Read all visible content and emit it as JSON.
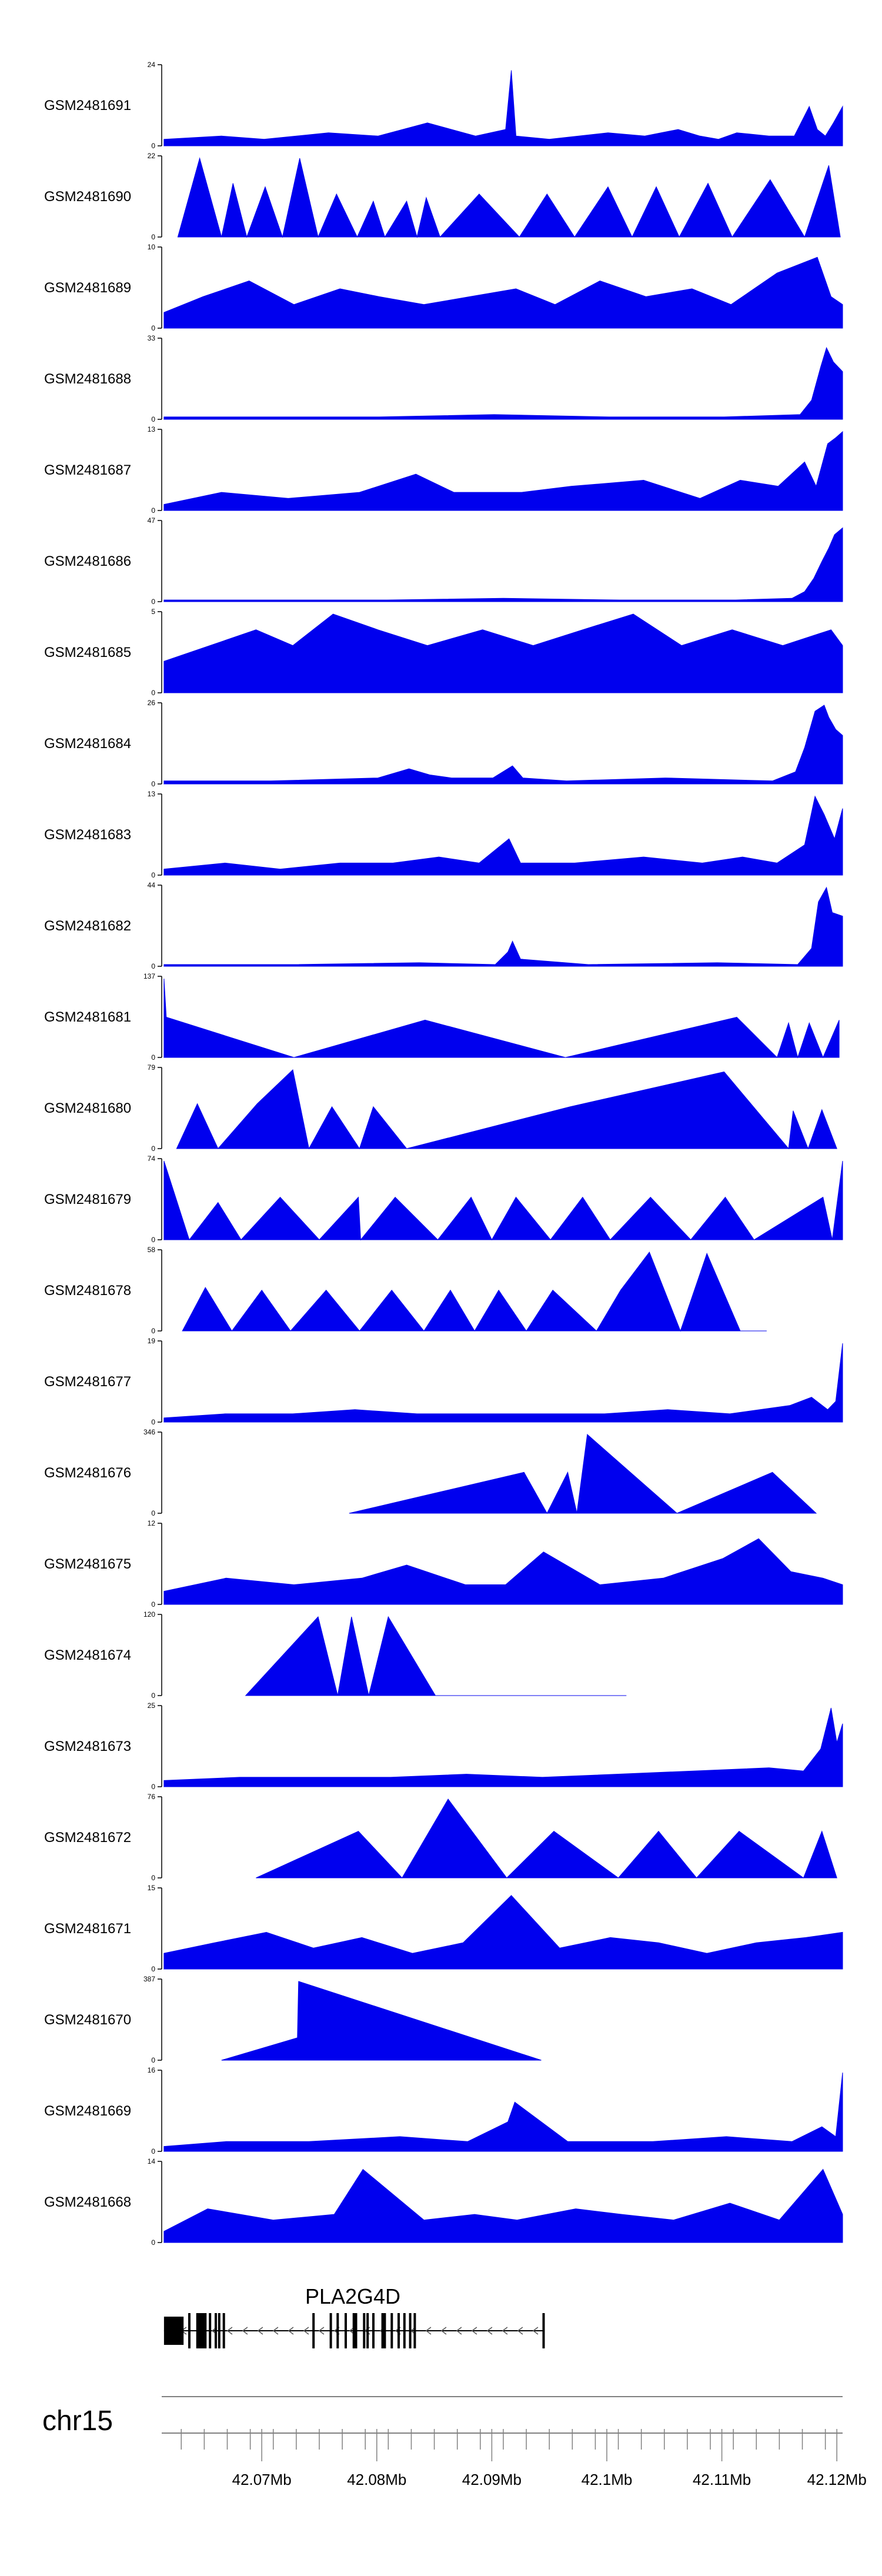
{
  "colors": {
    "track": "#0000ee",
    "axis": "#000000",
    "gene": "#000000",
    "ruler": "#808080"
  },
  "chart_data": {
    "type": "area",
    "title": "",
    "xlabel": "",
    "ylabel": "",
    "chromosome": "chr15",
    "genome_range_mb": [
      42.0613,
      42.1205
    ],
    "genome_ticks_mb": [
      42.07,
      42.08,
      42.09,
      42.1,
      42.11,
      42.12
    ],
    "genome_tick_labels": [
      "42.07Mb",
      "42.08Mb",
      "42.09Mb",
      "42.1Mb",
      "42.11Mb",
      "42.12Mb"
    ],
    "gene": {
      "name": "PLA2G4D",
      "strand": "-",
      "start_mb": 42.0615,
      "end_mb": 42.0945,
      "exons_mb": [
        [
          42.0615,
          42.0632
        ],
        [
          42.0636,
          42.0637
        ],
        [
          42.0643,
          42.0652
        ],
        [
          42.0654,
          42.0656
        ],
        [
          42.0659,
          42.066
        ],
        [
          42.0662,
          42.0663
        ],
        [
          42.0666,
          42.0667
        ],
        [
          42.0744,
          42.0746
        ],
        [
          42.0759,
          42.0761
        ],
        [
          42.0765,
          42.0767
        ],
        [
          42.0772,
          42.0774
        ],
        [
          42.0779,
          42.0783
        ],
        [
          42.0788,
          42.079
        ],
        [
          42.0791,
          42.0792
        ],
        [
          42.0796,
          42.0797
        ],
        [
          42.0804,
          42.0808
        ],
        [
          42.0812,
          42.0814
        ],
        [
          42.0818,
          42.0819
        ],
        [
          42.0823,
          42.0825
        ],
        [
          42.0828,
          42.0829
        ],
        [
          42.0832,
          42.0833
        ],
        [
          42.0944,
          42.0945
        ]
      ]
    },
    "series": [
      {
        "name": "GSM2481691",
        "ymax": 24,
        "ylim_labels": [
          "24",
          "0"
        ],
        "x": [
          42.0615,
          42.0665,
          42.0702,
          42.0758,
          42.0801,
          42.0844,
          42.0886,
          42.0912,
          42.0917,
          42.0921,
          42.095,
          42.1001,
          42.1033,
          42.1062,
          42.1081,
          42.1097,
          42.1113,
          42.1141,
          42.1163,
          42.1176,
          42.1183,
          42.119,
          42.1197,
          42.1205
        ],
        "values": [
          2,
          3,
          2,
          4,
          3,
          7,
          3,
          5,
          23,
          3,
          2,
          4,
          3,
          5,
          3,
          2,
          4,
          3,
          3,
          12,
          5,
          3,
          7,
          12
        ]
      },
      {
        "name": "GSM2481690",
        "ymax": 22,
        "ylim_labels": [
          "22",
          "0"
        ],
        "x": [
          42.0627,
          42.0646,
          42.0665,
          42.0675,
          42.0687,
          42.0703,
          42.0718,
          42.0733,
          42.0749,
          42.0765,
          42.0783,
          42.0797,
          42.0807,
          42.0826,
          42.0835,
          42.0843,
          42.0855,
          42.0889,
          42.0924,
          42.0948,
          42.0972,
          42.1001,
          42.1022,
          42.1043,
          42.1063,
          42.1088,
          42.1109,
          42.1142,
          42.1172,
          42.1193,
          42.1203
        ],
        "values": [
          0,
          22,
          0,
          15,
          0,
          14,
          0,
          22,
          0,
          12,
          0,
          10,
          0,
          10,
          0,
          11,
          0,
          12,
          0,
          12,
          0,
          14,
          0,
          14,
          0,
          15,
          0,
          16,
          0,
          20,
          0
        ]
      },
      {
        "name": "GSM2481689",
        "ymax": 10,
        "ylim_labels": [
          "10",
          "0"
        ],
        "x": [
          42.0615,
          42.0649,
          42.0689,
          42.0728,
          42.0768,
          42.0802,
          42.0841,
          42.0881,
          42.0921,
          42.0955,
          42.0994,
          42.1034,
          42.1074,
          42.1108,
          42.1148,
          42.1183,
          42.1195,
          42.1205
        ],
        "values": [
          2,
          4,
          6,
          3,
          5,
          4,
          3,
          4,
          5,
          3,
          6,
          4,
          5,
          3,
          7,
          9,
          4,
          3
        ]
      },
      {
        "name": "GSM2481688",
        "ymax": 33,
        "ylim_labels": [
          "33",
          "0"
        ],
        "x": [
          42.0615,
          42.0701,
          42.0802,
          42.0902,
          42.1002,
          42.1102,
          42.1168,
          42.1178,
          42.1186,
          42.1191,
          42.1197,
          42.1205
        ],
        "values": [
          1,
          1,
          1,
          2,
          1,
          1,
          2,
          8,
          22,
          30,
          24,
          20
        ]
      },
      {
        "name": "GSM2481687",
        "ymax": 13,
        "ylim_labels": [
          "13",
          "0"
        ],
        "x": [
          42.0615,
          42.0665,
          42.0723,
          42.0785,
          42.0834,
          42.0867,
          42.0926,
          42.0969,
          42.1032,
          42.1081,
          42.1116,
          42.1149,
          42.1172,
          42.1182,
          42.1192,
          42.1199,
          42.1205
        ],
        "values": [
          1,
          3,
          2,
          3,
          6,
          3,
          3,
          4,
          5,
          2,
          5,
          4,
          8,
          4,
          11,
          12,
          13
        ]
      },
      {
        "name": "GSM2481686",
        "ymax": 47,
        "ylim_labels": [
          "47",
          "0"
        ],
        "x": [
          42.0615,
          42.0708,
          42.0809,
          42.091,
          42.1011,
          42.1112,
          42.1161,
          42.1172,
          42.118,
          42.1187,
          42.1193,
          42.1198,
          42.1205
        ],
        "values": [
          1,
          1,
          1,
          2,
          1,
          1,
          2,
          6,
          14,
          24,
          32,
          40,
          44
        ]
      },
      {
        "name": "GSM2481685",
        "ymax": 5,
        "ylim_labels": [
          "5",
          "0"
        ],
        "x": [
          42.0615,
          42.0655,
          42.0695,
          42.0727,
          42.0762,
          42.0801,
          42.0844,
          42.0892,
          42.0936,
          42.0979,
          42.1023,
          42.1065,
          42.1109,
          42.1153,
          42.1195,
          42.1205
        ],
        "values": [
          2,
          3,
          4,
          3,
          5,
          4,
          3,
          4,
          3,
          4,
          5,
          3,
          4,
          3,
          4,
          3
        ]
      },
      {
        "name": "GSM2481684",
        "ymax": 26,
        "ylim_labels": [
          "26",
          "0"
        ],
        "x": [
          42.0615,
          42.0708,
          42.0801,
          42.0828,
          42.0846,
          42.0865,
          42.0901,
          42.0918,
          42.0927,
          42.0965,
          42.1051,
          42.1144,
          42.1164,
          42.1172,
          42.1181,
          42.1189,
          42.1193,
          42.1199,
          42.1205
        ],
        "values": [
          1,
          1,
          2,
          5,
          3,
          2,
          2,
          6,
          2,
          1,
          2,
          1,
          4,
          12,
          24,
          26,
          22,
          18,
          16
        ]
      },
      {
        "name": "GSM2481683",
        "ymax": 13,
        "ylim_labels": [
          "13",
          "0"
        ],
        "x": [
          42.0615,
          42.0668,
          42.0716,
          42.0768,
          42.0814,
          42.0854,
          42.0889,
          42.0915,
          42.0925,
          42.0972,
          42.1032,
          42.1083,
          42.1118,
          42.1148,
          42.1172,
          42.1181,
          42.1189,
          42.1198,
          42.1205
        ],
        "values": [
          1,
          2,
          1,
          2,
          2,
          3,
          2,
          6,
          2,
          2,
          3,
          2,
          3,
          2,
          5,
          13,
          10,
          6,
          11
        ]
      },
      {
        "name": "GSM2481682",
        "ymax": 44,
        "ylim_labels": [
          "44",
          "0"
        ],
        "x": [
          42.0615,
          42.0726,
          42.0837,
          42.0903,
          42.0914,
          42.0918,
          42.0925,
          42.0984,
          42.1096,
          42.1166,
          42.1178,
          42.1184,
          42.1191,
          42.1196,
          42.1205
        ],
        "values": [
          1,
          1,
          2,
          1,
          8,
          14,
          4,
          1,
          2,
          1,
          10,
          36,
          44,
          30,
          28
        ]
      },
      {
        "name": "GSM2481681",
        "ymax": 137,
        "ylim_labels": [
          "137",
          "0"
        ],
        "x": [
          42.0615,
          42.0617,
          42.0728,
          42.0842,
          42.0964,
          42.1113,
          42.1148,
          42.1158,
          42.1166,
          42.1176,
          42.1188,
          42.1202
        ],
        "values": [
          137,
          70,
          0,
          65,
          0,
          70,
          0,
          60,
          0,
          60,
          0,
          65
        ]
      },
      {
        "name": "GSM2481680",
        "ymax": 79,
        "ylim_labels": [
          "79",
          "0"
        ],
        "x": [
          42.0626,
          42.0644,
          42.0662,
          42.0696,
          42.0727,
          42.0741,
          42.0761,
          42.0785,
          42.0797,
          42.0826,
          42.0968,
          42.1102,
          42.1158,
          42.1162,
          42.1175,
          42.1187,
          42.12
        ],
        "values": [
          0,
          45,
          0,
          45,
          79,
          0,
          42,
          0,
          42,
          0,
          42,
          77,
          0,
          38,
          0,
          39,
          0
        ]
      },
      {
        "name": "GSM2481679",
        "ymax": 74,
        "ylim_labels": [
          "74",
          "0"
        ],
        "x": [
          42.0615,
          42.0637,
          42.0662,
          42.0682,
          42.0716,
          42.075,
          42.0784,
          42.0786,
          42.0816,
          42.0853,
          42.0882,
          42.09,
          42.0921,
          42.0951,
          42.0979,
          42.1003,
          42.1038,
          42.1073,
          42.1103,
          42.1128,
          42.1188,
          42.1196,
          42.1205
        ],
        "values": [
          74,
          0,
          35,
          0,
          40,
          0,
          40,
          0,
          40,
          0,
          40,
          0,
          40,
          0,
          40,
          0,
          40,
          0,
          40,
          0,
          40,
          0,
          74
        ]
      },
      {
        "name": "GSM2481678",
        "ymax": 58,
        "ylim_labels": [
          "58",
          "0"
        ],
        "x": [
          42.0631,
          42.0651,
          42.0674,
          42.07,
          42.0725,
          42.0756,
          42.0785,
          42.0813,
          42.0841,
          42.0864,
          42.0885,
          42.0906,
          42.093,
          42.0953,
          42.0991,
          42.1012,
          42.1037,
          42.1064,
          42.1087,
          42.1116,
          42.1139
        ],
        "values": [
          0,
          32,
          0,
          30,
          0,
          30,
          0,
          30,
          0,
          30,
          0,
          30,
          0,
          30,
          0,
          30,
          58,
          0,
          57,
          0,
          0
        ]
      },
      {
        "name": "GSM2481677",
        "ymax": 19,
        "ylim_labels": [
          "19",
          "0"
        ],
        "x": [
          42.0615,
          42.0668,
          42.0727,
          42.0781,
          42.0835,
          42.0889,
          42.0944,
          42.0998,
          42.1053,
          42.1107,
          42.1159,
          42.1178,
          42.1192,
          42.1199,
          42.1205
        ],
        "values": [
          1,
          2,
          2,
          3,
          2,
          2,
          2,
          2,
          3,
          2,
          4,
          6,
          3,
          5,
          19
        ]
      },
      {
        "name": "GSM2481676",
        "ymax": 346,
        "ylim_labels": [
          "346",
          "0"
        ],
        "x": [
          42.0776,
          42.0928,
          42.0948,
          42.0966,
          42.0974,
          42.0983,
          42.1061,
          42.1144,
          42.1182
        ],
        "values": [
          0,
          180,
          0,
          180,
          0,
          346,
          0,
          180,
          0
        ]
      },
      {
        "name": "GSM2481675",
        "ymax": 12,
        "ylim_labels": [
          "12",
          "0"
        ],
        "x": [
          42.0615,
          42.0669,
          42.0728,
          42.0787,
          42.0826,
          42.0877,
          42.0912,
          42.0945,
          42.0994,
          42.1049,
          42.1101,
          42.1132,
          42.116,
          42.1188,
          42.1205
        ],
        "values": [
          2,
          4,
          3,
          4,
          6,
          3,
          3,
          8,
          3,
          4,
          7,
          10,
          5,
          4,
          3
        ]
      },
      {
        "name": "GSM2481674",
        "ymax": 120,
        "ylim_labels": [
          "120",
          "0"
        ],
        "x": [
          42.0686,
          42.0749,
          42.0766,
          42.0778,
          42.0793,
          42.081,
          42.0851,
          42.1017
        ],
        "values": [
          0,
          120,
          0,
          120,
          0,
          120,
          0,
          0
        ]
      },
      {
        "name": "GSM2481673",
        "ymax": 25,
        "ylim_labels": [
          "25",
          "0"
        ],
        "x": [
          42.0615,
          42.0681,
          42.0747,
          42.0812,
          42.0878,
          42.0944,
          42.1009,
          42.1075,
          42.1141,
          42.1171,
          42.1186,
          42.1195,
          42.12,
          42.1205
        ],
        "values": [
          2,
          3,
          3,
          3,
          4,
          3,
          4,
          5,
          6,
          5,
          12,
          25,
          14,
          20
        ]
      },
      {
        "name": "GSM2481672",
        "ymax": 76,
        "ylim_labels": [
          "76",
          "0"
        ],
        "x": [
          42.0695,
          42.0784,
          42.0822,
          42.0862,
          42.0913,
          42.0954,
          42.101,
          42.1045,
          42.1078,
          42.1115,
          42.1171,
          42.1187,
          42.12
        ],
        "values": [
          0,
          45,
          0,
          76,
          0,
          45,
          0,
          45,
          0,
          45,
          0,
          45,
          0
        ]
      },
      {
        "name": "GSM2481671",
        "ymax": 15,
        "ylim_labels": [
          "15",
          "0"
        ],
        "x": [
          42.0615,
          42.0659,
          42.0704,
          42.0745,
          42.0787,
          42.0831,
          42.0875,
          42.0917,
          42.0959,
          42.1003,
          42.1045,
          42.1087,
          42.113,
          42.1173,
          42.1205
        ],
        "values": [
          3,
          5,
          7,
          4,
          6,
          3,
          5,
          14,
          4,
          6,
          5,
          3,
          5,
          6,
          7
        ]
      },
      {
        "name": "GSM2481670",
        "ymax": 387,
        "ylim_labels": [
          "387",
          "0"
        ],
        "x": [
          42.0665,
          42.0731,
          42.0732,
          42.0943
        ],
        "values": [
          0,
          110,
          387,
          0
        ]
      },
      {
        "name": "GSM2481669",
        "ymax": 16,
        "ylim_labels": [
          "16",
          "0"
        ],
        "x": [
          42.0615,
          42.0669,
          42.0741,
          42.082,
          42.0879,
          42.0914,
          42.092,
          42.0966,
          42.104,
          42.1104,
          42.1161,
          42.1187,
          42.1199,
          42.1205
        ],
        "values": [
          1,
          2,
          2,
          3,
          2,
          6,
          10,
          2,
          2,
          3,
          2,
          5,
          3,
          16
        ]
      },
      {
        "name": "GSM2481668",
        "ymax": 14,
        "ylim_labels": [
          "14",
          "0"
        ],
        "x": [
          42.0615,
          42.0653,
          42.071,
          42.0763,
          42.0788,
          42.0841,
          42.0885,
          42.0922,
          42.0973,
          42.1013,
          42.1058,
          42.1107,
          42.115,
          42.1188,
          42.1205
        ],
        "values": [
          2,
          6,
          4,
          5,
          13,
          4,
          5,
          4,
          6,
          5,
          4,
          7,
          4,
          13,
          5
        ]
      }
    ]
  }
}
